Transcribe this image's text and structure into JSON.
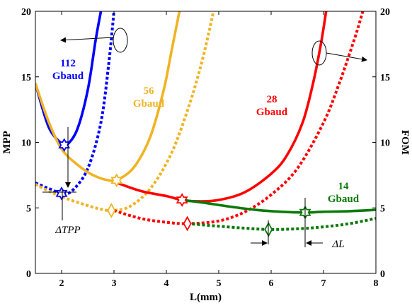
{
  "chart_data": {
    "type": "line",
    "xlabel": "L(mm)",
    "ylabel_left": "MPP",
    "ylabel_right": "FOM",
    "xlim": [
      1.5,
      8
    ],
    "ylim": [
      0,
      20
    ],
    "ylim_right": [
      0,
      20
    ],
    "x_ticks": [
      "2",
      "3",
      "4",
      "5",
      "6",
      "7",
      "8"
    ],
    "y_ticks": [
      "0",
      "5",
      "10",
      "15",
      "20"
    ],
    "y_ticks_right": [
      "0",
      "5",
      "10",
      "15",
      "20"
    ],
    "grid": false,
    "colors": {
      "112": "#0000ff",
      "56": "#f0b323",
      "28": "#ff0000",
      "14": "#0a7a0a"
    },
    "series": [
      {
        "name": "112 Gbaud",
        "label_lines": [
          "112",
          "Gbaud"
        ],
        "color": "#0000ff",
        "solid": {
          "x": [
            1.5,
            1.75,
            2.0,
            2.1,
            2.3,
            2.5,
            2.65,
            2.75
          ],
          "y": [
            14.5,
            11.2,
            9.9,
            9.8,
            11.0,
            14.0,
            17.8,
            20.0
          ]
        },
        "dotted": {
          "x": [
            1.5,
            1.8,
            2.0,
            2.2,
            2.5,
            2.75,
            2.9,
            3.0
          ],
          "y": [
            6.9,
            6.4,
            6.1,
            6.3,
            8.0,
            11.5,
            16.0,
            20.0
          ]
        },
        "solid_marker": {
          "x": 2.05,
          "y": 9.8
        },
        "dotted_marker": {
          "x": 2.0,
          "y": 6.1
        }
      },
      {
        "name": "56 Gbaud",
        "label_lines": [
          "56",
          "Gbaud"
        ],
        "color": "#f0b323",
        "solid": {
          "x": [
            1.5,
            1.75,
            2.0,
            2.3,
            2.6,
            2.9,
            3.1,
            3.4,
            3.7,
            3.95,
            4.1,
            4.25
          ],
          "y": [
            14.5,
            11.6,
            9.5,
            8.3,
            7.5,
            7.1,
            7.2,
            8.2,
            10.5,
            14.0,
            17.0,
            20.0
          ]
        },
        "dotted": {
          "x": [
            1.5,
            1.8,
            2.1,
            2.4,
            2.7,
            2.95,
            3.3,
            3.7,
            4.1,
            4.45,
            4.7,
            4.9
          ],
          "y": [
            6.8,
            6.2,
            5.7,
            5.3,
            4.95,
            4.8,
            5.1,
            6.5,
            9.2,
            13.0,
            16.5,
            20.0
          ]
        },
        "solid_marker": {
          "x": 3.05,
          "y": 7.1
        },
        "dotted_marker": {
          "x": 2.95,
          "y": 4.8
        }
      },
      {
        "name": "28 Gbaud",
        "label_lines": [
          "28",
          "Gbaud"
        ],
        "color": "#ff0000",
        "solid": {
          "x": [
            3.0,
            3.5,
            4.0,
            4.3,
            4.6,
            5.0,
            5.5,
            6.0,
            6.3,
            6.6,
            6.8,
            6.95,
            7.05
          ],
          "y": [
            7.0,
            6.3,
            5.9,
            5.6,
            5.5,
            5.6,
            6.2,
            7.6,
            9.0,
            11.5,
            14.5,
            17.5,
            20.0
          ]
        },
        "dotted": {
          "x": [
            3.0,
            3.5,
            4.0,
            4.4,
            5.0,
            5.5,
            6.0,
            6.5,
            7.0,
            7.3,
            7.6,
            7.75
          ],
          "y": [
            4.8,
            4.2,
            3.9,
            3.8,
            4.0,
            4.7,
            6.0,
            8.0,
            11.5,
            14.5,
            18.0,
            20.0
          ]
        },
        "solid_marker": {
          "x": 4.3,
          "y": 5.6
        },
        "dotted_marker": {
          "x": 4.4,
          "y": 3.8
        }
      },
      {
        "name": "14 Gbaud",
        "label_lines": [
          "14",
          "Gbaud"
        ],
        "color": "#0a7a0a",
        "solid": {
          "x": [
            4.3,
            4.7,
            5.2,
            5.7,
            6.2,
            6.65,
            7.0,
            7.5,
            8.0
          ],
          "y": [
            5.6,
            5.4,
            5.1,
            4.85,
            4.7,
            4.65,
            4.7,
            4.75,
            4.85
          ]
        },
        "dotted": {
          "x": [
            4.4,
            5.0,
            5.5,
            5.95,
            6.5,
            7.0,
            7.5,
            8.0
          ],
          "y": [
            3.8,
            3.6,
            3.45,
            3.35,
            3.4,
            3.55,
            3.8,
            4.2
          ]
        },
        "solid_marker": {
          "x": 6.65,
          "y": 4.65
        },
        "dotted_marker": {
          "x": 5.95,
          "y": 3.35
        }
      }
    ],
    "annotations": {
      "delta_tpp": "ΔTPP",
      "delta_l": "ΔL"
    }
  }
}
